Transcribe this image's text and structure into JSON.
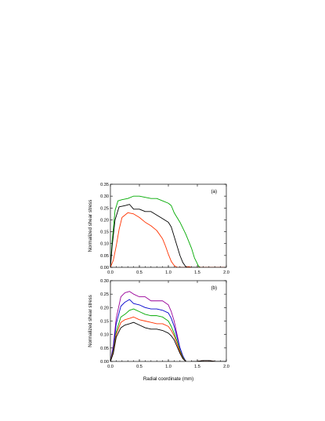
{
  "chart_data": [
    {
      "type": "line",
      "panel_label": "(a)",
      "xlabel": "",
      "ylabel": "Normalized shear stress",
      "xlim": [
        0,
        2.0
      ],
      "ylim": [
        0,
        0.35
      ],
      "xticks": [
        "0.0",
        "0.5",
        "1.0",
        "1.5",
        "2.0"
      ],
      "yticks": [
        "0.00",
        "0.05",
        "0.10",
        "0.15",
        "0.20",
        "0.25",
        "0.30",
        "0.35"
      ],
      "grid": false,
      "legend": "none",
      "series": [
        {
          "color": "#00aa00",
          "x": [
            0,
            0.03,
            0.08,
            0.13,
            0.2,
            0.3,
            0.4,
            0.5,
            0.6,
            0.7,
            0.8,
            0.9,
            1.0,
            1.05,
            1.1,
            1.2,
            1.3,
            1.4,
            1.45,
            1.5,
            1.52,
            1.55,
            1.6,
            1.8,
            2.0
          ],
          "y": [
            0.0,
            0.11,
            0.24,
            0.28,
            0.285,
            0.29,
            0.3,
            0.3,
            0.295,
            0.29,
            0.29,
            0.28,
            0.27,
            0.26,
            0.23,
            0.19,
            0.14,
            0.08,
            0.04,
            0.015,
            0.005,
            0.0,
            0.0,
            0.0,
            0.0
          ]
        },
        {
          "color": "#000000",
          "x": [
            0,
            0.03,
            0.08,
            0.15,
            0.25,
            0.33,
            0.4,
            0.5,
            0.6,
            0.7,
            0.8,
            0.9,
            1.0,
            1.05,
            1.1,
            1.15,
            1.2,
            1.25,
            1.3,
            1.4,
            1.6,
            2.0
          ],
          "y": [
            0.0,
            0.09,
            0.2,
            0.255,
            0.26,
            0.265,
            0.245,
            0.245,
            0.235,
            0.235,
            0.22,
            0.205,
            0.19,
            0.17,
            0.13,
            0.09,
            0.05,
            0.02,
            0.003,
            0.0,
            0.0,
            0.0
          ]
        },
        {
          "color": "#ff3300",
          "x": [
            0,
            0.05,
            0.1,
            0.15,
            0.2,
            0.3,
            0.4,
            0.5,
            0.6,
            0.7,
            0.8,
            0.9,
            0.95,
            1.0,
            1.05,
            1.1,
            1.15,
            1.2,
            1.3,
            1.35,
            1.4,
            1.45,
            1.5,
            1.7,
            2.0
          ],
          "y": [
            0.0,
            0.03,
            0.09,
            0.16,
            0.21,
            0.23,
            0.225,
            0.21,
            0.19,
            0.175,
            0.155,
            0.12,
            0.09,
            0.055,
            0.025,
            0.008,
            0.0,
            0.0,
            0.0,
            0.003,
            0.0,
            -0.003,
            0.0,
            0.0,
            0.0
          ]
        }
      ]
    },
    {
      "type": "line",
      "panel_label": "(b)",
      "xlabel": "Radial coordinate (mm)",
      "ylabel": "Normalized shear stress",
      "xlim": [
        0,
        2.0
      ],
      "ylim": [
        0,
        0.3
      ],
      "xticks": [
        "0.0",
        "0.5",
        "1.0",
        "1.5",
        "2.0"
      ],
      "yticks": [
        "0.00",
        "0.05",
        "0.10",
        "0.15",
        "0.20",
        "0.25",
        "0.30"
      ],
      "grid": false,
      "legend": "none",
      "series": [
        {
          "color": "#990099",
          "x": [
            0,
            0.05,
            0.1,
            0.18,
            0.25,
            0.33,
            0.4,
            0.5,
            0.6,
            0.7,
            0.8,
            0.9,
            1.0,
            1.05,
            1.1,
            1.15,
            1.2,
            1.25,
            1.3,
            1.35,
            1.4,
            1.5,
            1.6,
            1.7,
            1.8,
            2.0
          ],
          "y": [
            0.0,
            0.06,
            0.16,
            0.24,
            0.255,
            0.26,
            0.25,
            0.24,
            0.24,
            0.225,
            0.225,
            0.225,
            0.21,
            0.185,
            0.15,
            0.1,
            0.05,
            0.02,
            0.0,
            -0.005,
            0.0,
            0.0,
            0.003,
            0.003,
            0.0,
            0.0
          ]
        },
        {
          "color": "#0000cc",
          "x": [
            0,
            0.05,
            0.1,
            0.18,
            0.25,
            0.33,
            0.4,
            0.5,
            0.6,
            0.7,
            0.8,
            0.9,
            1.0,
            1.05,
            1.1,
            1.15,
            1.2,
            1.25,
            1.3,
            1.35,
            1.4,
            1.5,
            1.6,
            1.7,
            1.8,
            2.0
          ],
          "y": [
            0.0,
            0.05,
            0.14,
            0.205,
            0.22,
            0.23,
            0.215,
            0.21,
            0.2,
            0.195,
            0.195,
            0.19,
            0.18,
            0.16,
            0.13,
            0.09,
            0.05,
            0.02,
            0.0,
            -0.005,
            0.0,
            0.0,
            0.003,
            0.003,
            0.0,
            0.0
          ]
        },
        {
          "color": "#00aa00",
          "x": [
            0,
            0.05,
            0.1,
            0.18,
            0.25,
            0.33,
            0.4,
            0.5,
            0.6,
            0.7,
            0.8,
            0.9,
            1.0,
            1.05,
            1.1,
            1.15,
            1.2,
            1.25,
            1.3,
            1.35,
            1.4,
            1.5,
            1.6,
            1.7,
            1.8,
            2.0
          ],
          "y": [
            0.0,
            0.04,
            0.11,
            0.165,
            0.175,
            0.19,
            0.195,
            0.185,
            0.175,
            0.17,
            0.17,
            0.165,
            0.15,
            0.13,
            0.105,
            0.075,
            0.04,
            0.015,
            0.0,
            -0.005,
            0.0,
            0.0,
            0.003,
            0.003,
            0.0,
            0.0
          ]
        },
        {
          "color": "#ff3300",
          "x": [
            0,
            0.05,
            0.1,
            0.18,
            0.25,
            0.33,
            0.4,
            0.5,
            0.6,
            0.7,
            0.8,
            0.9,
            1.0,
            1.05,
            1.1,
            1.15,
            1.2,
            1.25,
            1.3,
            1.35,
            1.4,
            1.5,
            1.6,
            1.7,
            1.8,
            2.0
          ],
          "y": [
            0.0,
            0.035,
            0.1,
            0.145,
            0.155,
            0.16,
            0.165,
            0.155,
            0.15,
            0.145,
            0.14,
            0.14,
            0.13,
            0.115,
            0.095,
            0.065,
            0.035,
            0.012,
            0.0,
            -0.005,
            0.0,
            0.0,
            0.003,
            0.003,
            0.0,
            0.0
          ]
        },
        {
          "color": "#000000",
          "x": [
            0,
            0.05,
            0.1,
            0.18,
            0.25,
            0.33,
            0.4,
            0.5,
            0.6,
            0.7,
            0.8,
            0.9,
            1.0,
            1.05,
            1.1,
            1.15,
            1.2,
            1.25,
            1.3,
            1.35,
            1.4,
            1.5,
            1.6,
            1.7,
            1.8,
            2.0
          ],
          "y": [
            0.0,
            0.03,
            0.09,
            0.125,
            0.135,
            0.14,
            0.145,
            0.135,
            0.125,
            0.12,
            0.12,
            0.115,
            0.105,
            0.095,
            0.08,
            0.055,
            0.03,
            0.01,
            0.0,
            -0.005,
            0.0,
            0.0,
            0.003,
            0.003,
            0.0,
            0.0
          ]
        }
      ]
    }
  ]
}
